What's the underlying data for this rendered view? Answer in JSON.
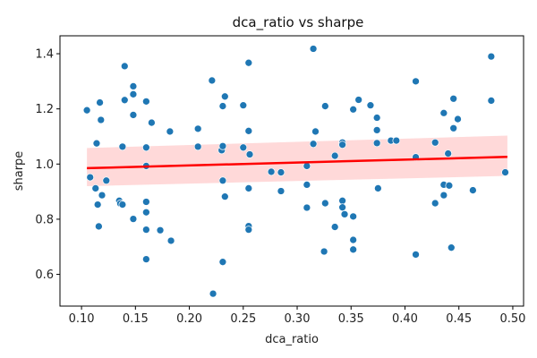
{
  "chart_data": {
    "type": "scatter",
    "title": "dca_ratio vs sharpe",
    "xlabel": "dca_ratio",
    "ylabel": "sharpe",
    "xlim": [
      0.08,
      0.51
    ],
    "ylim": [
      0.485,
      1.465
    ],
    "xticks": [
      "0.10",
      "0.15",
      "0.20",
      "0.25",
      "0.30",
      "0.35",
      "0.40",
      "0.45",
      "0.50"
    ],
    "yticks": [
      "0.6",
      "0.8",
      "1.0",
      "1.2",
      "1.4"
    ],
    "grid": false,
    "legend": "none",
    "colors": {
      "points": "#1f77b4",
      "regression_line": "#ff0000",
      "confidence_band": "#ffcccc"
    },
    "regression": {
      "x": [
        0.105,
        0.495
      ],
      "y": [
        0.985,
        1.026
      ],
      "ci_upper": [
        1.058,
        1.103
      ],
      "ci_lower": [
        0.92,
        0.957
      ]
    },
    "points": [
      {
        "x": 0.105,
        "y": 1.195
      },
      {
        "x": 0.108,
        "y": 0.952
      },
      {
        "x": 0.113,
        "y": 0.912
      },
      {
        "x": 0.114,
        "y": 1.075
      },
      {
        "x": 0.115,
        "y": 0.853
      },
      {
        "x": 0.116,
        "y": 0.774
      },
      {
        "x": 0.117,
        "y": 1.223
      },
      {
        "x": 0.118,
        "y": 1.16
      },
      {
        "x": 0.119,
        "y": 0.887
      },
      {
        "x": 0.123,
        "y": 0.94
      },
      {
        "x": 0.135,
        "y": 0.867
      },
      {
        "x": 0.136,
        "y": 0.857
      },
      {
        "x": 0.138,
        "y": 0.853
      },
      {
        "x": 0.138,
        "y": 1.063
      },
      {
        "x": 0.14,
        "y": 1.355
      },
      {
        "x": 0.14,
        "y": 1.232
      },
      {
        "x": 0.148,
        "y": 1.282
      },
      {
        "x": 0.148,
        "y": 1.253
      },
      {
        "x": 0.148,
        "y": 1.178
      },
      {
        "x": 0.148,
        "y": 0.801
      },
      {
        "x": 0.16,
        "y": 1.227
      },
      {
        "x": 0.16,
        "y": 1.06
      },
      {
        "x": 0.16,
        "y": 0.993
      },
      {
        "x": 0.16,
        "y": 0.863
      },
      {
        "x": 0.16,
        "y": 0.825
      },
      {
        "x": 0.16,
        "y": 0.762
      },
      {
        "x": 0.16,
        "y": 0.655
      },
      {
        "x": 0.165,
        "y": 1.15
      },
      {
        "x": 0.173,
        "y": 0.76
      },
      {
        "x": 0.182,
        "y": 1.118
      },
      {
        "x": 0.183,
        "y": 0.722
      },
      {
        "x": 0.208,
        "y": 1.128
      },
      {
        "x": 0.208,
        "y": 1.063
      },
      {
        "x": 0.221,
        "y": 1.303
      },
      {
        "x": 0.222,
        "y": 0.53
      },
      {
        "x": 0.23,
        "y": 1.05
      },
      {
        "x": 0.231,
        "y": 1.065
      },
      {
        "x": 0.231,
        "y": 1.21
      },
      {
        "x": 0.231,
        "y": 0.94
      },
      {
        "x": 0.231,
        "y": 0.645
      },
      {
        "x": 0.233,
        "y": 1.245
      },
      {
        "x": 0.233,
        "y": 0.882
      },
      {
        "x": 0.25,
        "y": 1.213
      },
      {
        "x": 0.25,
        "y": 1.06
      },
      {
        "x": 0.255,
        "y": 1.367
      },
      {
        "x": 0.255,
        "y": 1.12
      },
      {
        "x": 0.256,
        "y": 1.035
      },
      {
        "x": 0.255,
        "y": 0.912
      },
      {
        "x": 0.255,
        "y": 0.775
      },
      {
        "x": 0.255,
        "y": 0.762
      },
      {
        "x": 0.276,
        "y": 0.972
      },
      {
        "x": 0.285,
        "y": 0.97
      },
      {
        "x": 0.285,
        "y": 0.902
      },
      {
        "x": 0.309,
        "y": 0.993
      },
      {
        "x": 0.309,
        "y": 0.925
      },
      {
        "x": 0.309,
        "y": 0.842
      },
      {
        "x": 0.315,
        "y": 1.418
      },
      {
        "x": 0.315,
        "y": 1.073
      },
      {
        "x": 0.317,
        "y": 1.118
      },
      {
        "x": 0.325,
        "y": 0.683
      },
      {
        "x": 0.326,
        "y": 1.21
      },
      {
        "x": 0.326,
        "y": 0.858
      },
      {
        "x": 0.335,
        "y": 1.03
      },
      {
        "x": 0.335,
        "y": 0.772
      },
      {
        "x": 0.342,
        "y": 1.078
      },
      {
        "x": 0.342,
        "y": 1.07
      },
      {
        "x": 0.342,
        "y": 0.867
      },
      {
        "x": 0.342,
        "y": 0.843
      },
      {
        "x": 0.344,
        "y": 0.818
      },
      {
        "x": 0.352,
        "y": 1.198
      },
      {
        "x": 0.352,
        "y": 0.81
      },
      {
        "x": 0.352,
        "y": 0.725
      },
      {
        "x": 0.352,
        "y": 0.69
      },
      {
        "x": 0.357,
        "y": 1.233
      },
      {
        "x": 0.368,
        "y": 1.213
      },
      {
        "x": 0.374,
        "y": 1.168
      },
      {
        "x": 0.374,
        "y": 1.123
      },
      {
        "x": 0.374,
        "y": 1.076
      },
      {
        "x": 0.375,
        "y": 0.912
      },
      {
        "x": 0.387,
        "y": 1.085
      },
      {
        "x": 0.392,
        "y": 1.085
      },
      {
        "x": 0.41,
        "y": 1.3
      },
      {
        "x": 0.41,
        "y": 1.025
      },
      {
        "x": 0.41,
        "y": 0.672
      },
      {
        "x": 0.428,
        "y": 1.078
      },
      {
        "x": 0.428,
        "y": 0.858
      },
      {
        "x": 0.436,
        "y": 1.185
      },
      {
        "x": 0.436,
        "y": 0.925
      },
      {
        "x": 0.436,
        "y": 0.887
      },
      {
        "x": 0.44,
        "y": 1.038
      },
      {
        "x": 0.441,
        "y": 0.922
      },
      {
        "x": 0.443,
        "y": 0.697
      },
      {
        "x": 0.445,
        "y": 1.237
      },
      {
        "x": 0.445,
        "y": 1.13
      },
      {
        "x": 0.449,
        "y": 1.163
      },
      {
        "x": 0.463,
        "y": 0.905
      },
      {
        "x": 0.48,
        "y": 1.39
      },
      {
        "x": 0.48,
        "y": 1.23
      },
      {
        "x": 0.493,
        "y": 0.97
      }
    ]
  }
}
